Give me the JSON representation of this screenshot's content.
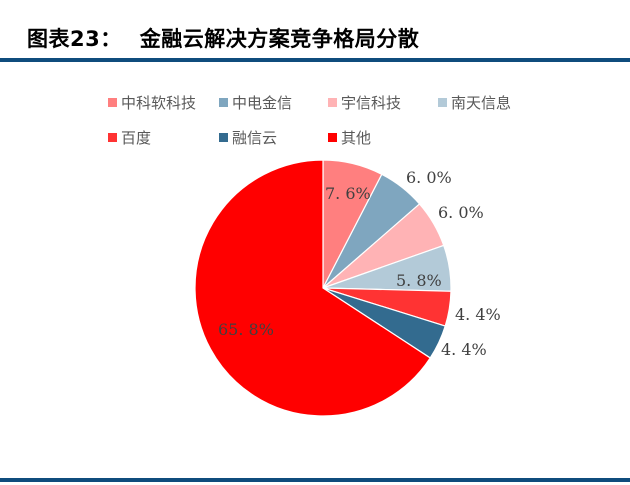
{
  "header": {
    "figure_no": "图表23：",
    "title": "金融云解决方案竞争格局分散"
  },
  "colors": {
    "rule": "#0F4C7D"
  },
  "chart_data": {
    "type": "pie",
    "title": "金融云解决方案竞争格局分散",
    "start_angle": "12 o'clock, clockwise",
    "legend_position": "top",
    "slices": [
      {
        "name": "中科软科技",
        "value": 7.6,
        "label": "7.6%",
        "color": "#FF7F7F"
      },
      {
        "name": "中电金信",
        "value": 6.0,
        "label": "6.0%",
        "color": "#7FA6BF"
      },
      {
        "name": "宇信科技",
        "value": 6.0,
        "label": "6.0%",
        "color": "#FFB3B5"
      },
      {
        "name": "南天信息",
        "value": 5.8,
        "label": "5.8%",
        "color": "#B3CAD8"
      },
      {
        "name": "百度",
        "value": 4.4,
        "label": "4.4%",
        "color": "#FF3333"
      },
      {
        "name": "融信云",
        "value": 4.4,
        "label": "4.4%",
        "color": "#336B8F"
      },
      {
        "name": "其他",
        "value": 65.8,
        "label": "65.8%",
        "color": "#FF0000"
      }
    ]
  },
  "legend": [
    {
      "label": "中科软科技",
      "color": "#FF7F7F"
    },
    {
      "label": "中电金信",
      "color": "#7FA6BF"
    },
    {
      "label": "宇信科技",
      "color": "#FFB3B5"
    },
    {
      "label": "南天信息",
      "color": "#B3CAD8"
    },
    {
      "label": "百度",
      "color": "#FF3333"
    },
    {
      "label": "融信云",
      "color": "#336B8F"
    },
    {
      "label": "其他",
      "color": "#FF0000"
    }
  ]
}
